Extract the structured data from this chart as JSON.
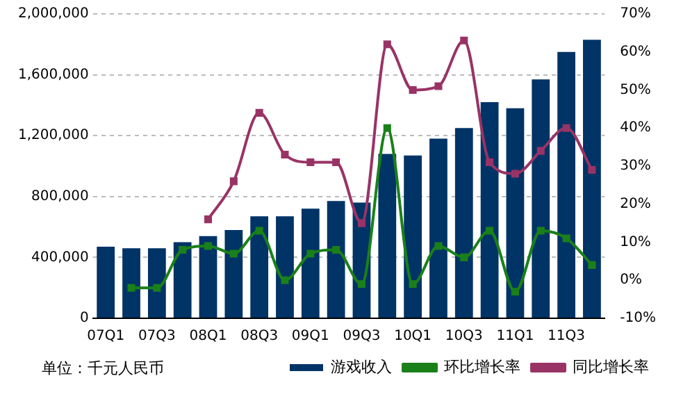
{
  "chart_data": {
    "type": "bar",
    "categories": [
      "07Q1",
      null,
      "07Q3",
      null,
      "08Q1",
      null,
      "08Q3",
      null,
      "09Q1",
      null,
      "09Q3",
      null,
      "10Q1",
      null,
      "10Q3",
      null,
      "11Q1",
      null,
      "11Q3",
      null
    ],
    "series": [
      {
        "name": "游戏收入",
        "color": "#003366",
        "values": [
          470000,
          460000,
          460000,
          500000,
          540000,
          580000,
          670000,
          670000,
          720000,
          770000,
          760000,
          1080000,
          1070000,
          1180000,
          1250000,
          1420000,
          1380000,
          1570000,
          1750000,
          1830000
        ]
      },
      {
        "name": "环比增长率",
        "type": "line",
        "axis": "y2",
        "color": "#1a801a",
        "marker": "square",
        "values": [
          null,
          -2,
          -2,
          8,
          9,
          7,
          13,
          0,
          7,
          8,
          -1,
          40,
          -1,
          9,
          6,
          13,
          -3,
          13,
          11,
          4
        ]
      },
      {
        "name": "同比增长率",
        "type": "line",
        "axis": "y2",
        "color": "#993366",
        "marker": "square",
        "values": [
          null,
          null,
          null,
          null,
          16,
          26,
          44,
          33,
          31,
          31,
          15,
          62,
          50,
          51,
          63,
          31,
          28,
          34,
          40,
          29
        ]
      }
    ],
    "ylim": [
      0,
      2000000
    ],
    "yticks": [
      0,
      {
        "value": 400000,
        "label": "400,000"
      },
      {
        "value": 800000,
        "label": "800,000"
      },
      {
        "value": 1200000,
        "label": "1,200,000"
      },
      {
        "value": 1600000,
        "label": "1,600,000"
      },
      {
        "value": 2000000,
        "label": "2,000,000"
      }
    ],
    "y2lim": [
      -10,
      70
    ],
    "y2ticks": [
      {
        "value": -10,
        "label": "-10%"
      },
      {
        "value": 0,
        "label": "0%"
      },
      {
        "value": 10,
        "label": "10%"
      },
      {
        "value": 20,
        "label": "20%"
      },
      {
        "value": 30,
        "label": "30%"
      },
      {
        "value": 40,
        "label": "40%"
      },
      {
        "value": 50,
        "label": "50%"
      },
      {
        "value": 60,
        "label": "60%"
      },
      {
        "value": 70,
        "label": "70%"
      }
    ],
    "grid": "y",
    "legend": "bottom",
    "annotations": [
      "单位：千元人民币"
    ]
  }
}
